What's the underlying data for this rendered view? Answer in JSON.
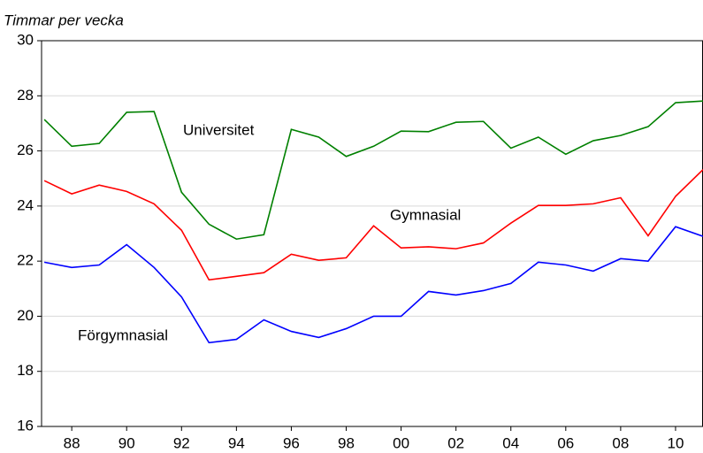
{
  "chart_data": {
    "type": "line",
    "title": "Timmar per vecka",
    "x": [
      1987,
      1988,
      1989,
      1990,
      1991,
      1992,
      1993,
      1994,
      1995,
      1996,
      1997,
      1998,
      1999,
      2000,
      2001,
      2002,
      2003,
      2004,
      2005,
      2006,
      2007,
      2008,
      2009,
      2010,
      2011
    ],
    "series": [
      {
        "name": "Universitet",
        "color": "#008000",
        "values": [
          27.14,
          26.17,
          26.27,
          27.4,
          27.43,
          24.5,
          23.34,
          22.8,
          22.96,
          26.78,
          26.5,
          25.8,
          26.17,
          26.72,
          26.7,
          27.04,
          27.07,
          26.1,
          26.5,
          25.88,
          26.37,
          26.56,
          26.88,
          27.75,
          27.81
        ]
      },
      {
        "name": "Gymnasial",
        "color": "#ff0000",
        "values": [
          24.92,
          24.44,
          24.76,
          24.53,
          24.08,
          23.12,
          21.32,
          21.45,
          21.58,
          22.25,
          22.03,
          22.12,
          23.28,
          22.48,
          22.52,
          22.45,
          22.66,
          23.38,
          24.02,
          24.02,
          24.08,
          24.3,
          22.92,
          24.35,
          25.32
        ]
      },
      {
        "name": "Förgymnasial",
        "color": "#0000ff",
        "values": [
          21.96,
          21.77,
          21.86,
          22.6,
          21.77,
          20.7,
          19.04,
          19.16,
          19.87,
          19.45,
          19.23,
          19.55,
          20.0,
          20.0,
          20.9,
          20.77,
          20.93,
          21.19,
          21.96,
          21.86,
          21.64,
          22.09,
          22.0,
          23.25,
          22.9
        ]
      }
    ],
    "xlim": [
      1986.9,
      2011
    ],
    "xticks": [
      {
        "value": 1988,
        "label": "88"
      },
      {
        "value": 1990,
        "label": "90"
      },
      {
        "value": 1992,
        "label": "92"
      },
      {
        "value": 1994,
        "label": "94"
      },
      {
        "value": 1996,
        "label": "96"
      },
      {
        "value": 1998,
        "label": "98"
      },
      {
        "value": 2000,
        "label": "00"
      },
      {
        "value": 2002,
        "label": "02"
      },
      {
        "value": 2004,
        "label": "04"
      },
      {
        "value": 2006,
        "label": "06"
      },
      {
        "value": 2008,
        "label": "08"
      },
      {
        "value": 2010,
        "label": "10"
      }
    ],
    "ylim": [
      16,
      30
    ],
    "yticks": [
      16,
      18,
      20,
      22,
      24,
      26,
      28,
      30
    ],
    "grid": true
  }
}
